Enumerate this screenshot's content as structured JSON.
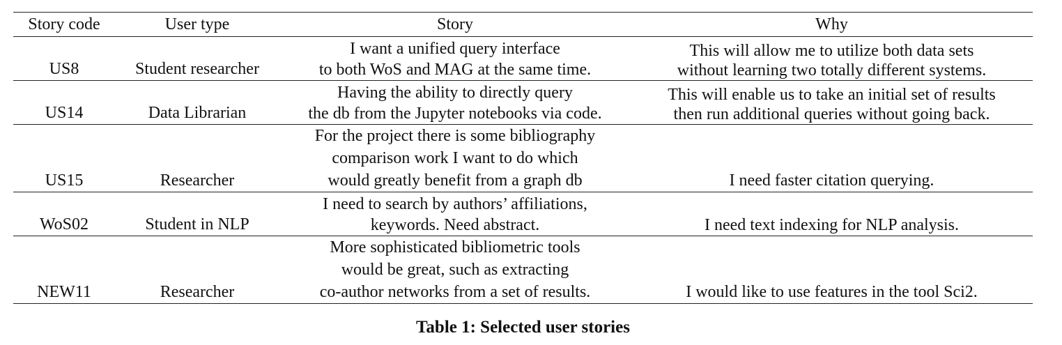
{
  "table": {
    "headers": [
      "Story code",
      "User type",
      "Story",
      "Why"
    ],
    "rows": [
      {
        "code": "US8",
        "user_type": "Student researcher",
        "story": [
          "I want a unified query interface",
          "to both WoS and MAG at the same time."
        ],
        "why": [
          "This will allow me to utilize both data sets",
          "without learning two totally different systems."
        ]
      },
      {
        "code": "US14",
        "user_type": "Data Librarian",
        "story": [
          "Having the ability to directly query",
          "the db from the Jupyter notebooks via code."
        ],
        "why": [
          "This will enable us to take an initial set of results",
          "then run additional queries without going back."
        ]
      },
      {
        "code": "US15",
        "user_type": "Researcher",
        "story": [
          "For the project there is some bibliography",
          "comparison work I want to do which",
          "would greatly benefit from a graph db"
        ],
        "why": [
          "I need faster citation querying."
        ]
      },
      {
        "code": "WoS02",
        "user_type": "Student in NLP",
        "story": [
          "I need to search by authors’ affiliations,",
          "keywords. Need abstract."
        ],
        "why": [
          "I need text indexing for NLP analysis."
        ]
      },
      {
        "code": "NEW11",
        "user_type": "Researcher",
        "story": [
          "More sophisticated bibliometric tools",
          "would be great, such as extracting",
          "co-author networks from a set of results."
        ],
        "why": [
          "I would like to use features in the tool Sci2."
        ]
      }
    ],
    "caption": "Table 1: Selected user stories"
  }
}
